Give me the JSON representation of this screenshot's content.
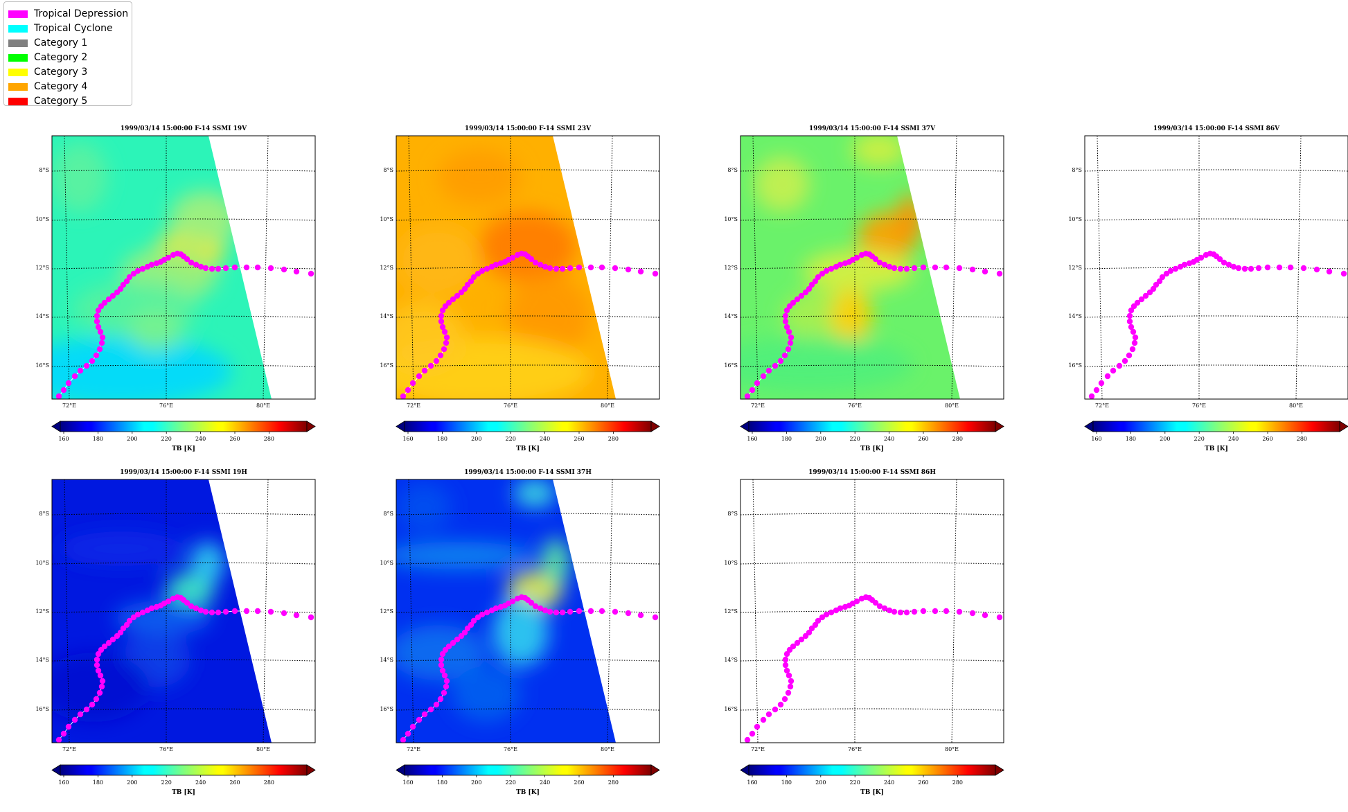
{
  "legend": {
    "items": [
      {
        "label": "Tropical Depression",
        "color": "#ff00ff"
      },
      {
        "label": "Tropical Cyclone",
        "color": "#00ffff"
      },
      {
        "label": "Category 1",
        "color": "#808080"
      },
      {
        "label": "Category 2",
        "color": "#00ff00"
      },
      {
        "label": "Category 3",
        "color": "#ffff00"
      },
      {
        "label": "Category 4",
        "color": "#ffa500"
      },
      {
        "label": "Category 5",
        "color": "#ff0000"
      }
    ]
  },
  "panels": [
    {
      "title": "1999/03/14 15:00:00  F-14 SSMI 19V",
      "field": "19v"
    },
    {
      "title": "1999/03/14 15:00:00  F-14 SSMI 23V",
      "field": "23v"
    },
    {
      "title": "1999/03/14 15:00:00  F-14 SSMI 37V",
      "field": "37v"
    },
    {
      "title": "1999/03/14 15:00:00  F-14 SSMI 86V",
      "field": "none"
    },
    {
      "title": "1999/03/14 15:00:00  F-14 SSMI 19H",
      "field": "19h"
    },
    {
      "title": "1999/03/14 15:00:00  F-14 SSMI 37H",
      "field": "37h"
    },
    {
      "title": "1999/03/14 15:00:00  F-14 SSMI 86H",
      "field": "none"
    }
  ],
  "map": {
    "lat_labels": [
      "8°S",
      "10°S",
      "12°S",
      "14°S",
      "16°S"
    ],
    "lon_labels": [
      "72°E",
      "76°E",
      "80°E"
    ],
    "track_color": "#ff00ff"
  },
  "colorbar": {
    "ticks": [
      "160",
      "180",
      "200",
      "220",
      "240",
      "260",
      "280"
    ],
    "label": "TB [K]"
  }
}
